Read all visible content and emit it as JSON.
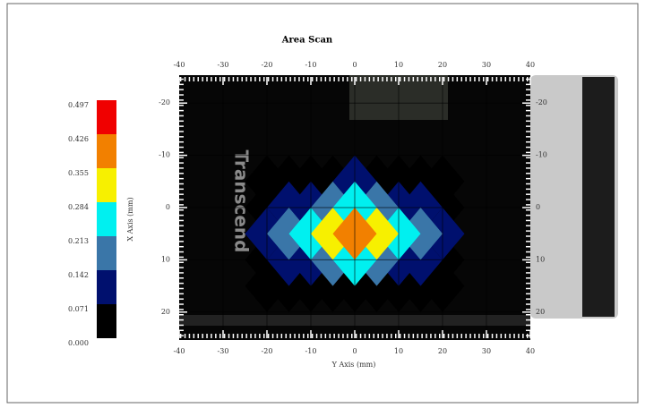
{
  "chart_data": {
    "type": "contour",
    "title": "Area Scan",
    "xlabel": "Y Axis (mm)",
    "ylabel": "X Axis (mm)",
    "photo_text": "Transcend",
    "xlim": [
      -40,
      40
    ],
    "ylim": [
      -25,
      25
    ],
    "xticks": [
      -40,
      -30,
      -20,
      -10,
      0,
      10,
      20,
      30,
      40
    ],
    "yticks": [
      -20,
      -10,
      0,
      10,
      20
    ],
    "y_inverted": true,
    "grid": true,
    "x": [
      -20,
      -15,
      -10,
      -5,
      0,
      5,
      10,
      15,
      20
    ],
    "y": [
      -5,
      0,
      5,
      10,
      15
    ],
    "z": [
      [
        0.04,
        0.05,
        0.05,
        0.06,
        0.08,
        0.06,
        0.05,
        0.05,
        0.04
      ],
      [
        0.05,
        0.09,
        0.13,
        0.18,
        0.22,
        0.18,
        0.13,
        0.09,
        0.05
      ],
      [
        0.1,
        0.17,
        0.24,
        0.31,
        0.4,
        0.31,
        0.24,
        0.17,
        0.1
      ],
      [
        0.05,
        0.09,
        0.13,
        0.18,
        0.22,
        0.18,
        0.13,
        0.09,
        0.05
      ],
      [
        0.04,
        0.05,
        0.05,
        0.06,
        0.07,
        0.06,
        0.05,
        0.05,
        0.04
      ]
    ],
    "colorbar": {
      "levels": [
        {
          "value": 0,
          "label": "0.000"
        },
        0.071,
        0.142,
        0.213,
        0.284,
        0.355,
        0.426,
        0.497
      ],
      "colors": [
        "#000000",
        "#00106e",
        "#3a76a8",
        "#00f0f0",
        "#f7f000",
        "#f28000",
        "#f00000"
      ]
    }
  }
}
